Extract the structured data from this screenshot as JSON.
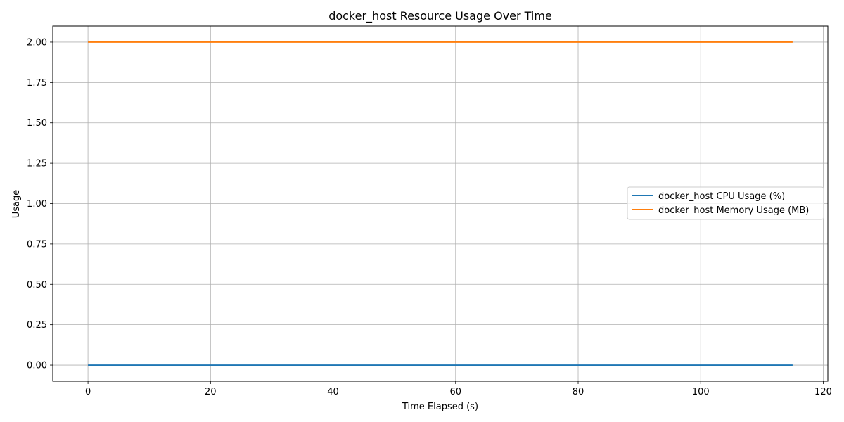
{
  "chart_data": {
    "type": "line",
    "title": "docker_host Resource Usage Over Time",
    "xlabel": "Time Elapsed (s)",
    "ylabel": "Usage",
    "xlim": [
      -5.75,
      120.75
    ],
    "ylim": [
      -0.1,
      2.1
    ],
    "xticks": [
      0,
      20,
      40,
      60,
      80,
      100,
      120
    ],
    "xtick_labels": [
      "0",
      "20",
      "40",
      "60",
      "80",
      "100",
      "120"
    ],
    "yticks": [
      0,
      0.25,
      0.5,
      0.75,
      1.0,
      1.25,
      1.5,
      1.75,
      2.0
    ],
    "ytick_labels": [
      "0.00",
      "0.25",
      "0.50",
      "0.75",
      "1.00",
      "1.25",
      "1.50",
      "1.75",
      "2.00"
    ],
    "grid": true,
    "legend_position": "center-right",
    "series": [
      {
        "name": "docker_host CPU Usage (%)",
        "color": "#1f77b4",
        "x": [
          0,
          115
        ],
        "y": [
          0,
          0
        ]
      },
      {
        "name": "docker_host Memory Usage (MB)",
        "color": "#ff7f0e",
        "x": [
          0,
          115
        ],
        "y": [
          2,
          2
        ]
      }
    ]
  }
}
